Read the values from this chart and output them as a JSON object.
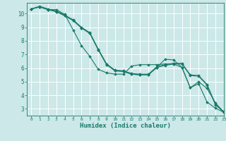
{
  "title": "",
  "xlabel": "Humidex (Indice chaleur)",
  "ylabel": "",
  "background_color": "#cce8e8",
  "grid_color": "#ffffff",
  "line_color": "#1a7a6a",
  "xlim": [
    -0.5,
    23
  ],
  "ylim": [
    2.5,
    10.8
  ],
  "yticks": [
    3,
    4,
    5,
    6,
    7,
    8,
    9,
    10
  ],
  "xticks": [
    0,
    1,
    2,
    3,
    4,
    5,
    6,
    7,
    8,
    9,
    10,
    11,
    12,
    13,
    14,
    15,
    16,
    17,
    18,
    19,
    20,
    21,
    22,
    23
  ],
  "series": [
    {
      "x": [
        0,
        1,
        2,
        3,
        4,
        5,
        6,
        7,
        8,
        9,
        10,
        11,
        12,
        13,
        14,
        15,
        16,
        17,
        18,
        19,
        20,
        21,
        22,
        23
      ],
      "y": [
        10.35,
        10.55,
        10.35,
        10.2,
        9.9,
        9.55,
        9.0,
        8.6,
        7.4,
        6.3,
        5.85,
        5.8,
        5.6,
        5.55,
        5.55,
        6.1,
        6.25,
        6.35,
        6.35,
        5.5,
        5.45,
        4.8,
        3.35,
        2.8
      ]
    },
    {
      "x": [
        0,
        1,
        2,
        3,
        4,
        5,
        6,
        7,
        8,
        9,
        10,
        11,
        12,
        13,
        14,
        15,
        16,
        17,
        18,
        19,
        20,
        21,
        22,
        23
      ],
      "y": [
        10.35,
        10.5,
        10.3,
        10.15,
        9.85,
        9.5,
        8.95,
        8.55,
        7.35,
        6.25,
        5.8,
        5.75,
        5.55,
        5.5,
        5.5,
        6.05,
        6.2,
        6.3,
        6.3,
        5.45,
        5.4,
        4.75,
        3.3,
        2.75
      ]
    },
    {
      "x": [
        0,
        1,
        2,
        3,
        4,
        5,
        6,
        7,
        8,
        9,
        10,
        11,
        12,
        13,
        14,
        15,
        16,
        17,
        18,
        19,
        20,
        21,
        22,
        23
      ],
      "y": [
        10.35,
        10.5,
        10.3,
        10.15,
        9.85,
        9.5,
        8.95,
        8.55,
        7.35,
        6.25,
        5.8,
        5.75,
        5.55,
        5.5,
        5.5,
        6.05,
        6.65,
        6.6,
        6.05,
        4.55,
        5.0,
        4.5,
        3.45,
        2.75
      ]
    },
    {
      "x": [
        0,
        1,
        2,
        3,
        4,
        5,
        6,
        7,
        8,
        9,
        10,
        11,
        12,
        13,
        14,
        15,
        16,
        17,
        18,
        19,
        20,
        21,
        22,
        23
      ],
      "y": [
        10.35,
        10.5,
        10.3,
        10.3,
        9.95,
        8.8,
        7.65,
        6.85,
        5.9,
        5.65,
        5.55,
        5.55,
        6.15,
        6.25,
        6.25,
        6.25,
        6.3,
        6.3,
        6.05,
        4.55,
        4.85,
        3.5,
        3.05,
        2.75
      ]
    }
  ]
}
